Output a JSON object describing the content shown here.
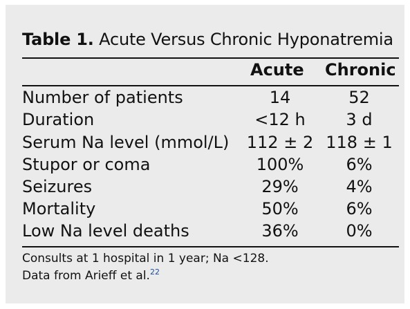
{
  "table": {
    "label": "Table 1.",
    "caption": "Acute Versus Chronic Hyponatremia",
    "columns": [
      "Acute",
      "Chronic"
    ],
    "rows": [
      {
        "label": "Number of patients",
        "acute": "14",
        "chronic": "52"
      },
      {
        "label": "Duration",
        "acute": "<12 h",
        "chronic": "3 d"
      },
      {
        "label": "Serum Na level (mmol/L)",
        "acute": "112 ± 2",
        "chronic": "118 ± 1"
      },
      {
        "label": "Stupor or coma",
        "acute": "100%",
        "chronic": "6%"
      },
      {
        "label": "Seizures",
        "acute": "29%",
        "chronic": "4%"
      },
      {
        "label": "Mortality",
        "acute": "50%",
        "chronic": "6%"
      },
      {
        "label": "Low Na level deaths",
        "acute": "36%",
        "chronic": "0%"
      }
    ],
    "footnote_line1": "Consults at 1 hospital in 1 year; Na <128.",
    "footnote_line2": "Data from Arieff et al.",
    "footnote_ref": "22"
  }
}
